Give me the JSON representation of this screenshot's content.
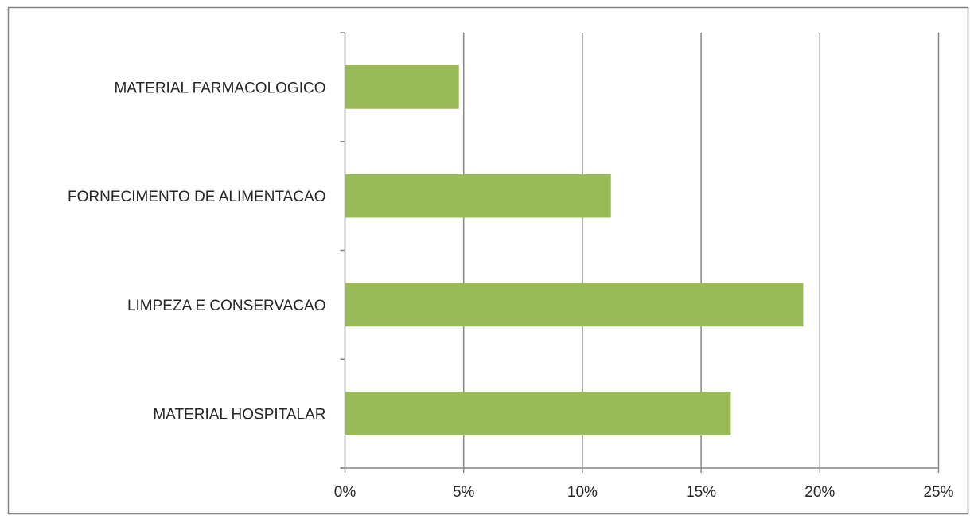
{
  "chart_data": {
    "type": "bar",
    "orientation": "horizontal",
    "categories": [
      "MATERIAL FARMACOLOGICO",
      "FORNECIMENTO DE ALIMENTACAO",
      "LIMPEZA E CONSERVACAO",
      "MATERIAL HOSPITALAR"
    ],
    "values": [
      4.8,
      11.2,
      19.3,
      16.25
    ],
    "value_unit": "%",
    "title": "",
    "xlabel": "",
    "ylabel": "",
    "xlim": [
      0,
      25
    ],
    "x_ticks": [
      0,
      5,
      10,
      15,
      20,
      25
    ],
    "x_tick_labels": [
      "0%",
      "5%",
      "10%",
      "15%",
      "20%",
      "25%"
    ],
    "grid": "vertical-major",
    "legend": "none",
    "bar_color": "#9BBB59",
    "grid_color": "#868686",
    "frame_color": "#868686"
  }
}
